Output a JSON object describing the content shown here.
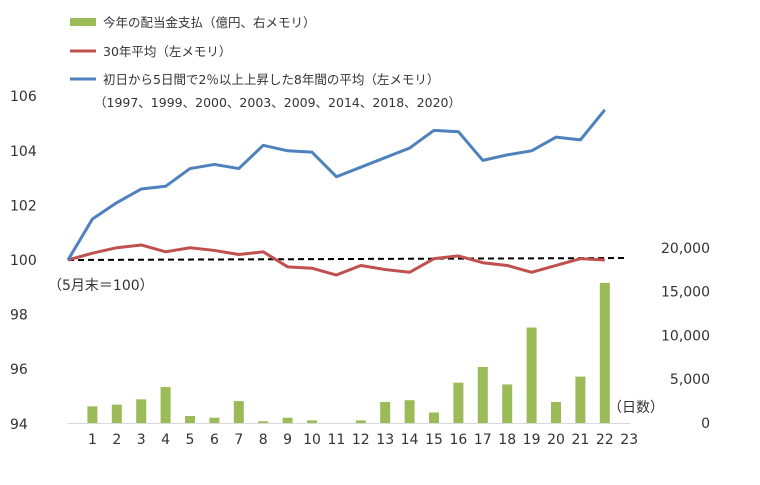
{
  "chart_data": {
    "type": "bar+line",
    "x": [
      1,
      2,
      3,
      4,
      5,
      6,
      7,
      8,
      9,
      10,
      11,
      12,
      13,
      14,
      15,
      16,
      17,
      18,
      19,
      20,
      21,
      22,
      23
    ],
    "x_tick_labels": [
      "1",
      "2",
      "3",
      "4",
      "5",
      "6",
      "7",
      "8",
      "9",
      "10",
      "11",
      "12",
      "13",
      "14",
      "15",
      "16",
      "17",
      "18",
      "19",
      "20",
      "21",
      "22",
      "23"
    ],
    "xlabel": "（日数）",
    "left_axis": {
      "ylim": [
        94,
        107
      ],
      "ticks": [
        94,
        96,
        98,
        100,
        102,
        104,
        106
      ],
      "tick_labels": [
        "94",
        "96",
        "98",
        "100",
        "102",
        "104",
        "106"
      ],
      "note": "（5月末＝100）"
    },
    "right_axis": {
      "ylim": [
        0,
        20000
      ],
      "ticks": [
        0,
        5000,
        10000,
        15000,
        20000
      ],
      "tick_labels": [
        "0",
        "5,000",
        "10,000",
        "15,000",
        "20,000"
      ]
    },
    "series": [
      {
        "name": "今年の配当金支払（億円、右メモリ）",
        "kind": "bar",
        "axis": "right",
        "color": "#9bbb59",
        "values": [
          1900,
          2100,
          2700,
          4100,
          800,
          600,
          2500,
          200,
          600,
          300,
          0,
          300,
          2400,
          2600,
          1200,
          4600,
          6400,
          4400,
          10900,
          2400,
          5300,
          16000,
          null
        ]
      },
      {
        "name": "30年平均（左メモリ）",
        "kind": "line",
        "axis": "left",
        "color": "#c0504d",
        "start_value": 100,
        "values": [
          100.25,
          100.45,
          100.55,
          100.3,
          100.45,
          100.35,
          100.2,
          100.3,
          99.75,
          99.7,
          99.45,
          99.8,
          99.65,
          99.55,
          100.05,
          100.15,
          99.9,
          99.8,
          99.55,
          99.8,
          100.05,
          100.0,
          null
        ]
      },
      {
        "name": "初日から5日間で2％以上上昇した8年間の平均（左メモリ）",
        "name_line2": "（1997、1999、2000、2003、2009、2014、2018、2020）",
        "kind": "line",
        "axis": "left",
        "color": "#4f81bd",
        "start_value": 100,
        "values": [
          101.5,
          102.1,
          102.6,
          102.7,
          103.35,
          103.5,
          103.35,
          104.2,
          104.0,
          103.95,
          103.05,
          103.4,
          103.75,
          104.1,
          104.75,
          104.7,
          103.65,
          103.85,
          104.0,
          104.5,
          104.4,
          105.5,
          null
        ]
      }
    ],
    "reference_line": {
      "value": 100,
      "axis": "left",
      "style": "dashed",
      "color": "#000000"
    },
    "legend_position": "top-left"
  }
}
